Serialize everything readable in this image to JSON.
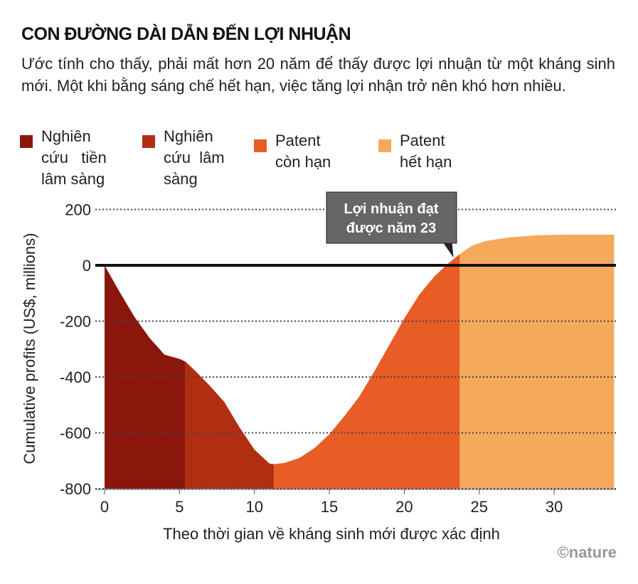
{
  "chart_data": {
    "type": "area",
    "title": "CON ĐƯỜNG DÀI DẪN ĐẾN LỢI NHUẬN",
    "subtitle": "Ước tính cho thấy, phải mất hơn 20 năm để thấy được lợi nhuận từ một kháng sinh mới. Một khi bằng sáng chế hết hạn, việc tăng lợi nhận trở nên khó hơn nhiều.",
    "xlabel": "Theo thời gian về kháng sinh mới được xác định",
    "ylabel": "Cumulative profits (US$, millions)",
    "xlim": [
      0,
      34
    ],
    "ylim": [
      -800,
      200
    ],
    "xticks": [
      0,
      5,
      10,
      15,
      20,
      25,
      30
    ],
    "yticks": [
      200,
      0,
      -200,
      -400,
      -600,
      -800
    ],
    "grid": true,
    "x": [
      0,
      1,
      2,
      3,
      4,
      5,
      5.4,
      6,
      7,
      8,
      9,
      10,
      11,
      11.3,
      12,
      13,
      14,
      15,
      16,
      17,
      18,
      19,
      20,
      21,
      22,
      23,
      23.7,
      24.5,
      25.5,
      27,
      29,
      31,
      34
    ],
    "y": [
      0,
      -95,
      -185,
      -260,
      -320,
      -335,
      -345,
      -375,
      -430,
      -490,
      -580,
      -660,
      -710,
      -712,
      -708,
      -690,
      -655,
      -605,
      -540,
      -470,
      -380,
      -285,
      -190,
      -105,
      -40,
      10,
      40,
      70,
      88,
      100,
      108,
      110,
      110
    ],
    "phases": [
      {
        "name": "Nghiên cứu tiền lâm sàng",
        "start": 0,
        "end": 5.4,
        "color": "#8b160c"
      },
      {
        "name": "Nghiên cứu lâm sàng",
        "start": 5.4,
        "end": 11.3,
        "color": "#b22e12"
      },
      {
        "name": "Patent còn hạn",
        "start": 11.3,
        "end": 23.7,
        "color": "#e85c25"
      },
      {
        "name": "Patent hết hạn",
        "start": 23.7,
        "end": 34,
        "color": "#f5a95a"
      }
    ],
    "legend_lines": [
      [
        "Nghiên",
        "cứu   tiền",
        "lâm sàng"
      ],
      [
        "Nghiên",
        "cứu  lâm",
        "sàng"
      ],
      [
        "Patent",
        "còn hạn"
      ],
      [
        "Patent",
        "hết hạn"
      ]
    ],
    "annotation": {
      "lines": [
        "Lợi nhuận đạt",
        "được năm 23"
      ],
      "x": 23
    }
  },
  "source": "©nature"
}
